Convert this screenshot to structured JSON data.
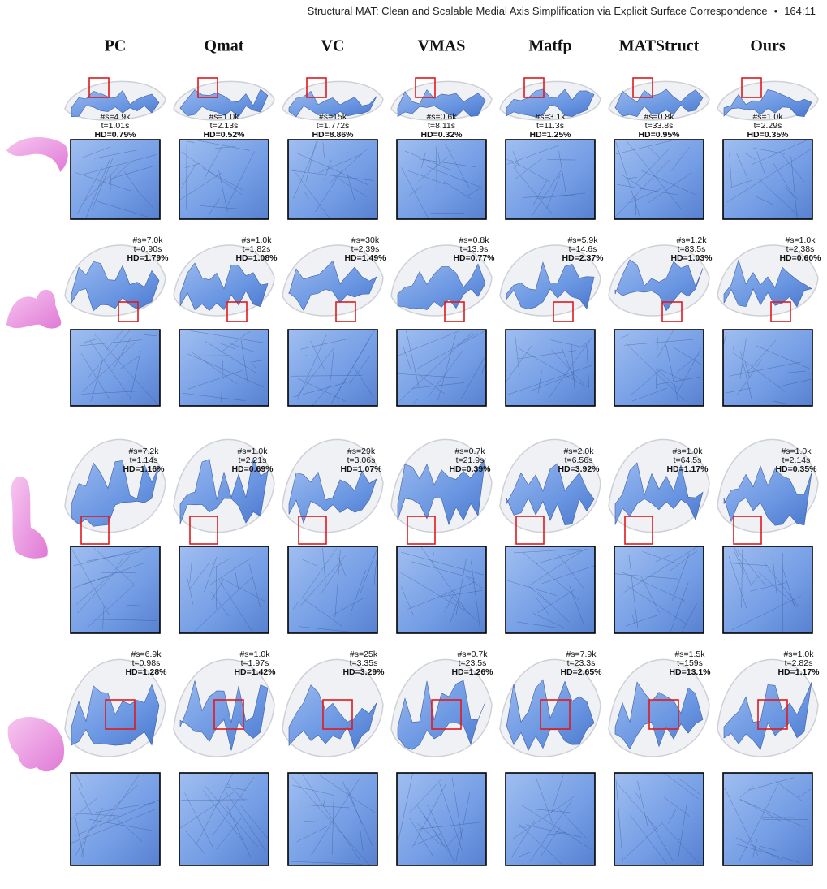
{
  "header": {
    "title": "Structural MAT: Clean and Scalable Medial Axis Simplification via Explicit Surface Correspondence",
    "bullet": "•",
    "page": "164:11"
  },
  "methods": [
    "PC",
    "Qmat",
    "VC",
    "VMAS",
    "Matfp",
    "MATStruct",
    "Ours"
  ],
  "rows": [
    [
      [
        "#s=4.9k",
        "t=1.01s",
        "HD=0.79%"
      ],
      [
        "#s=1.0k",
        "t=2.13s",
        "HD=0.52%"
      ],
      [
        "#s=15k",
        "t=1.772s",
        "HD=8.86%"
      ],
      [
        "#s=0.6k",
        "t=8.11s",
        "HD=0.32%"
      ],
      [
        "#s=3.1k",
        "t=11.3s",
        "HD=1.25%"
      ],
      [
        "#s=0.8k",
        "t=33.8s",
        "HD=0.95%"
      ],
      [
        "#s=1.0k",
        "t=2.29s",
        "HD=0.35%"
      ]
    ],
    [
      [
        "#s=7.0k",
        "t=0.90s",
        "HD=1.79%"
      ],
      [
        "#s=1.0k",
        "t=1.82s",
        "HD=1.08%"
      ],
      [
        "#s=30k",
        "t=2.39s",
        "HD=1.49%"
      ],
      [
        "#s=0.8k",
        "t=13.9s",
        "HD=0.77%"
      ],
      [
        "#s=5.9k",
        "t=14.6s",
        "HD=2.37%"
      ],
      [
        "#s=1.2k",
        "t=83.5s",
        "HD=1.03%"
      ],
      [
        "#s=1.0k",
        "t=2.38s",
        "HD=0.60%"
      ]
    ],
    [
      [
        "#s=7.2k",
        "t=1.14s",
        "HD=1.16%"
      ],
      [
        "#s=1.0k",
        "t=2.21s",
        "HD=0.69%"
      ],
      [
        "#s=29k",
        "t=3.06s",
        "HD=1.07%"
      ],
      [
        "#s=0.7k",
        "t=21.9s",
        "HD=0.39%"
      ],
      [
        "#s=2.0k",
        "t=6.56s",
        "HD=3.92%"
      ],
      [
        "#s=1.0k",
        "t=64.5s",
        "HD=1.17%"
      ],
      [
        "#s=1.0k",
        "t=2.14s",
        "HD=0.35%"
      ]
    ],
    [
      [
        "#s=6.9k",
        "t=0.98s",
        "HD=1.28%"
      ],
      [
        "#s=1.0k",
        "t=1.97s",
        "HD=1.42%"
      ],
      [
        "#s=25k",
        "t=3.35s",
        "HD=3.29%"
      ],
      [
        "#s=0.7k",
        "t=23.5s",
        "HD=1.26%"
      ],
      [
        "#s=7.9k",
        "t=23.3s",
        "HD=2.65%"
      ],
      [
        "#s=1.5k",
        "t=159s",
        "HD=13.1%"
      ],
      [
        "#s=1.0k",
        "t=2.82s",
        "HD=1.17%"
      ]
    ]
  ]
}
